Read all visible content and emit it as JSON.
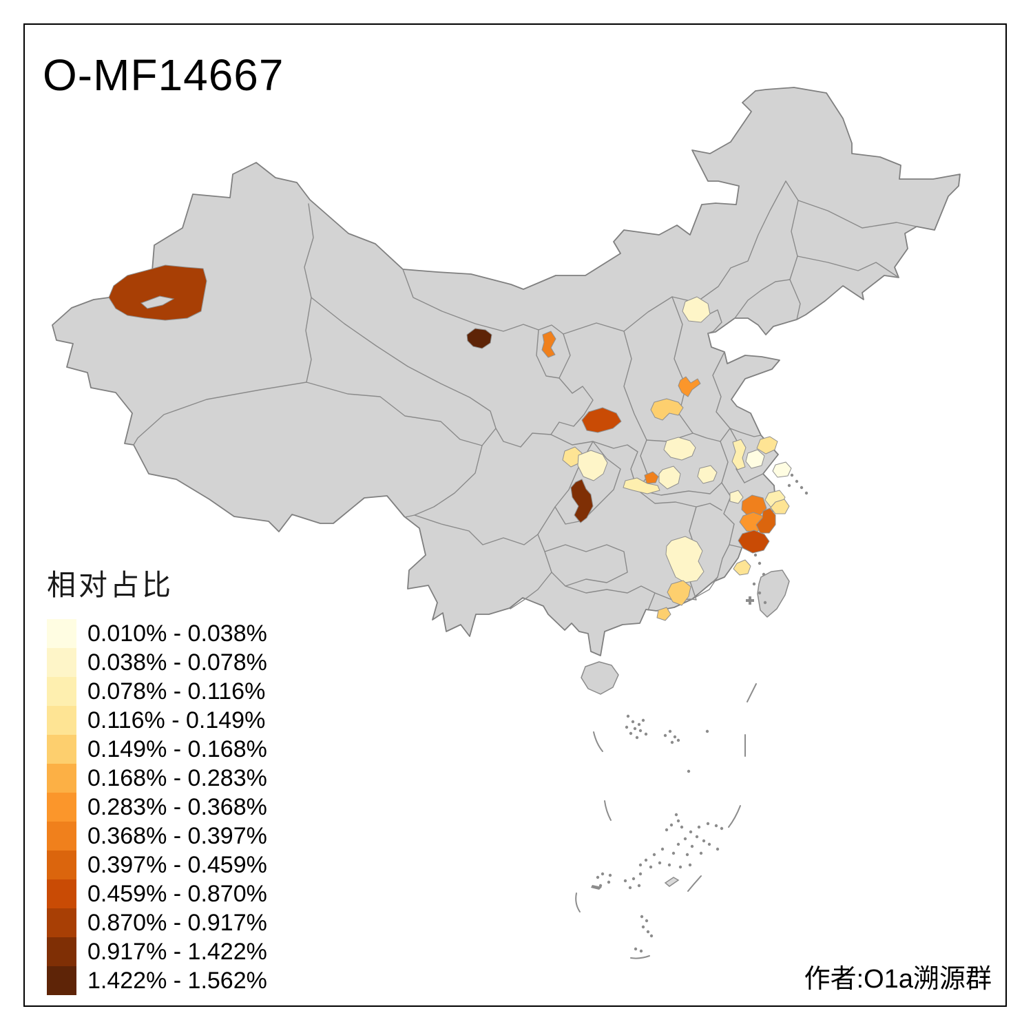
{
  "title": "O-MF14667",
  "attribution": "作者:O1a溯源群",
  "legend": {
    "title": "相对占比",
    "classes": [
      {
        "label": "0.010% - 0.038%",
        "color": "#FFFDE2"
      },
      {
        "label": "0.038% - 0.078%",
        "color": "#FEF5C8"
      },
      {
        "label": "0.078% - 0.116%",
        "color": "#FEEFAF"
      },
      {
        "label": "0.116% - 0.149%",
        "color": "#FEE494"
      },
      {
        "label": "0.149% - 0.168%",
        "color": "#FDCF6E"
      },
      {
        "label": "0.168% - 0.283%",
        "color": "#FCB045"
      },
      {
        "label": "0.283% - 0.368%",
        "color": "#FB962B"
      },
      {
        "label": "0.368% - 0.397%",
        "color": "#F0801C"
      },
      {
        "label": "0.397% - 0.459%",
        "color": "#DB650D"
      },
      {
        "label": "0.459% - 0.870%",
        "color": "#C94B05"
      },
      {
        "label": "0.870% - 0.917%",
        "color": "#A83F05"
      },
      {
        "label": "0.917% - 1.422%",
        "color": "#7F2F05"
      },
      {
        "label": "1.422% - 1.562%",
        "color": "#5E2407"
      }
    ]
  },
  "map": {
    "base_land_color": "#d3d3d3",
    "province_border_color": "#8a8a8a",
    "sea_color": "#ffffff",
    "small_island_color": "#8c8c8c",
    "regions": [
      {
        "id": "aksu",
        "name": "region-xinjiang-aksu",
        "class_index": 10
      },
      {
        "id": "jinchang",
        "name": "region-gansu-jinchang",
        "class_index": 12
      },
      {
        "id": "wuzhong",
        "name": "region-ningxia",
        "class_index": 7
      },
      {
        "id": "hanzhong",
        "name": "region-shaanxi-hanzhong",
        "class_index": 9
      },
      {
        "id": "beijing",
        "name": "region-beijing",
        "class_index": 1
      },
      {
        "id": "jincheng",
        "name": "region-shanxi-southeast",
        "class_index": 6
      },
      {
        "id": "yuncheng",
        "name": "region-shanxi-southwest",
        "class_index": 4
      },
      {
        "id": "luoyang",
        "name": "region-henan-west",
        "class_index": 1
      },
      {
        "id": "bazhong",
        "name": "region-sichuan-northeast-a",
        "class_index": 3
      },
      {
        "id": "dazhou",
        "name": "region-sichuan-northeast-b",
        "class_index": 1
      },
      {
        "id": "jingmen",
        "name": "region-hubei-center",
        "class_index": 7
      },
      {
        "id": "hubei-w",
        "name": "region-hubei-west",
        "class_index": 2
      },
      {
        "id": "hubei-m",
        "name": "region-hubei-mid",
        "class_index": 1
      },
      {
        "id": "hubei-e",
        "name": "region-hubei-east",
        "class_index": 1
      },
      {
        "id": "enshi",
        "name": "region-hubei-enshi",
        "class_index": 11
      },
      {
        "id": "chuzhou",
        "name": "region-anhui-east",
        "class_index": 2
      },
      {
        "id": "nantong",
        "name": "region-jiangsu-south",
        "class_index": 3
      },
      {
        "id": "yangzhou",
        "name": "region-jiangsu-mid",
        "class_index": 0
      },
      {
        "id": "shanghai",
        "name": "region-shanghai",
        "class_index": 0
      },
      {
        "id": "jiaxing",
        "name": "region-zhejiang-north",
        "class_index": 2
      },
      {
        "id": "ningbo",
        "name": "region-zhejiang-ningbo",
        "class_index": 3
      },
      {
        "id": "hangzhou",
        "name": "region-zhejiang-hangzhou",
        "class_index": 7
      },
      {
        "id": "jinhua",
        "name": "region-zhejiang-jinhua",
        "class_index": 6
      },
      {
        "id": "taizhou",
        "name": "region-zhejiang-taizhou",
        "class_index": 8
      },
      {
        "id": "wenzhou",
        "name": "region-zhejiang-wenzhou",
        "class_index": 9
      },
      {
        "id": "ningde",
        "name": "region-fujian-northeast",
        "class_index": 3
      },
      {
        "id": "jian",
        "name": "region-jiangxi-jian",
        "class_index": 1
      },
      {
        "id": "shaoguan",
        "name": "region-guangdong-shaoguan",
        "class_index": 4
      },
      {
        "id": "qingyuan",
        "name": "region-guangdong-qingyuan",
        "class_index": 4
      },
      {
        "id": "huzhou",
        "name": "region-zhejiang-west-pale",
        "class_index": 1
      }
    ]
  }
}
